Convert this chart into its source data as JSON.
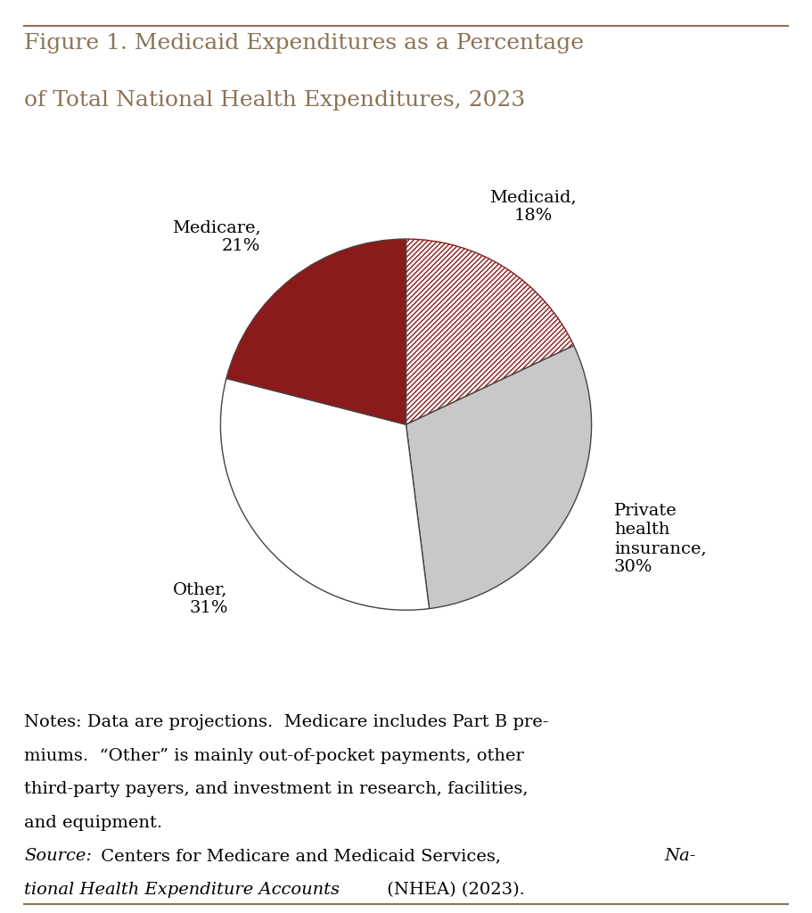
{
  "title_line1": "Figure 1. Medicaid Expenditures as a Percentage",
  "title_line2": "of Total National Health Expenditures, 2023",
  "title_color": "#8B7355",
  "slices": [
    {
      "label": "Medicaid,\n18%",
      "value": 18,
      "color": "hatched",
      "hatch_fg": "#8B1A1A",
      "hatch_bg": "#FFFFFF"
    },
    {
      "label": "Private\nhealth\ninsurance,\n30%",
      "value": 30,
      "color": "#C8C8C8"
    },
    {
      "label": "Other,\n31%",
      "value": 31,
      "color": "#FFFFFF"
    },
    {
      "label": "Medicare,\n21%",
      "value": 21,
      "color": "#8B1A1A"
    }
  ],
  "pie_edge_color": "#444444",
  "pie_edge_width": 1.0,
  "start_angle": 90,
  "notes_text": "Notes: Data are projections.  Medicare includes Part B premiums.  “Other” is mainly out-of-pocket payments, other third-party payers, and investment in research, facilities, and equipment.",
  "background_color": "#FFFFFF",
  "border_color": "#8B7355",
  "label_fontsize": 14,
  "notes_fontsize": 14,
  "title_fontsize": 18
}
